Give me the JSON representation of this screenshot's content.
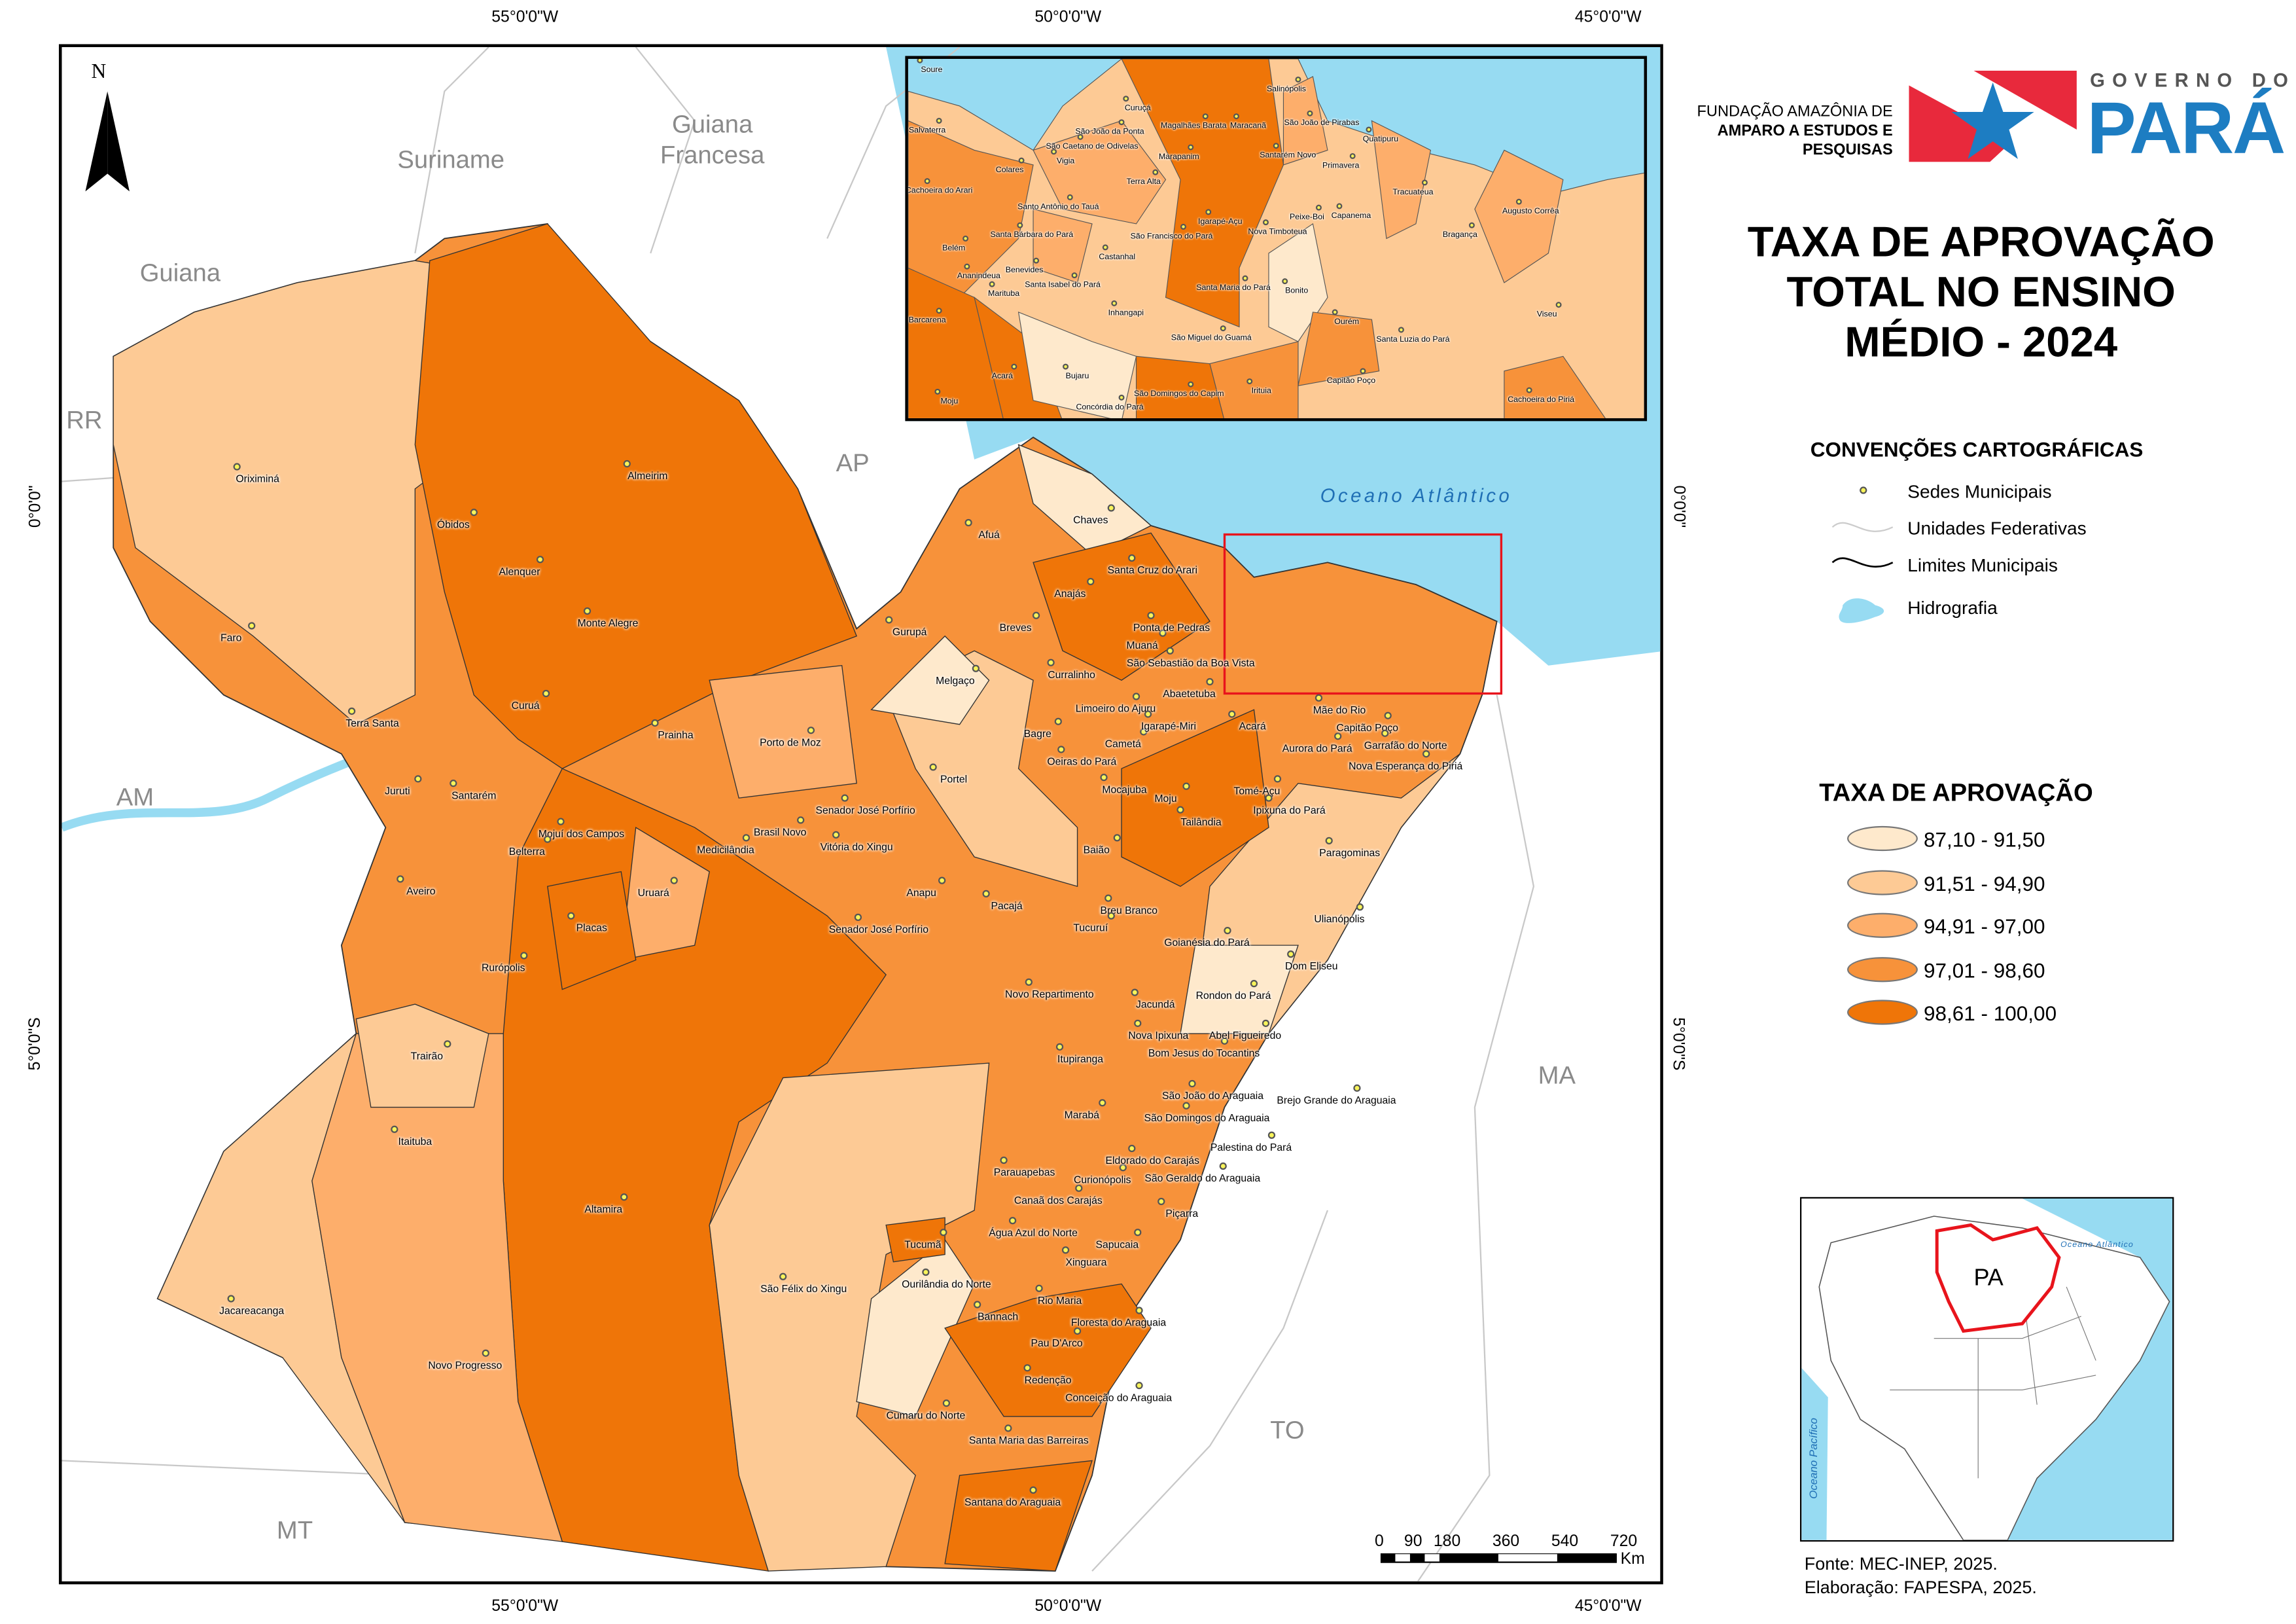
{
  "title": [
    "TAXA DE APROVAÇÃO",
    "TOTAL NO ENSINO",
    "MÉDIO - 2024"
  ],
  "institution": {
    "line1": "FUNDAÇÃO AMAZÔNIA DE",
    "line2": "AMPARO A ESTUDOS E",
    "line3": "PESQUISAS"
  },
  "government_logo": {
    "top": "GOVERNO DO",
    "name": "PARÁ"
  },
  "coordinates": {
    "lon": [
      "55°0'0\"W",
      "50°0'0\"W",
      "45°0'0\"W"
    ],
    "lat": [
      "0°0'0\"",
      "5°0'0\"S"
    ]
  },
  "regions": {
    "suriname": "Suriname",
    "guiana_francesa": "Guiana Francesa",
    "guiana": "Guiana",
    "rr": "RR",
    "ap": "AP",
    "am": "AM",
    "ma": "MA",
    "to": "TO",
    "mt": "MT",
    "ocean": "Oceano Atlântico"
  },
  "conventions": {
    "heading": "CONVENÇÕES CARTOGRÁFICAS",
    "items": [
      "Sedes Municipais",
      "Unidades Federativas",
      "Limites Municipais",
      "Hidrografia"
    ]
  },
  "legend": {
    "heading": "TAXA DE APROVAÇÃO",
    "classes": [
      {
        "label": "87,10 - 91,50",
        "color": "#fee9cc"
      },
      {
        "label": "91,51 - 94,90",
        "color": "#fdca95"
      },
      {
        "label": "94,91 - 97,00",
        "color": "#fdae6b"
      },
      {
        "label": "97,01 - 98,60",
        "color": "#f7923a"
      },
      {
        "label": "98,61 - 100,00",
        "color": "#ef7508"
      }
    ]
  },
  "scale_bar": {
    "ticks": [
      "0",
      "90",
      "180",
      "360",
      "540",
      "720"
    ],
    "unit": "Km"
  },
  "locator": {
    "state": "PA",
    "ocean_atlantic": "Oceano Atlântico",
    "ocean_pacific": "Oceano Pacífico"
  },
  "source": {
    "fonte": "Fonte: MEC-INEP, 2025.",
    "elaboracao": "Elaboração: FAPESPA, 2025."
  },
  "municipalities": [
    "Oriximiná",
    "Óbidos",
    "Almeirim",
    "Alenquer",
    "Monte Alegre",
    "Faro",
    "Terra Santa",
    "Curuá",
    "Prainha",
    "Juruti",
    "Santarém",
    "Porto de Moz",
    "Mojuí dos Campos",
    "Belterra",
    "Senador José Porfírio",
    "Brasil Novo",
    "Vitória do Xingu",
    "Medicilândia",
    "Aveiro",
    "Uruará",
    "Placas",
    "Anapu",
    "Senador José Porfírio",
    "Rurópolis",
    "Pacajá",
    "Trairão",
    "Itaituba",
    "Altamira",
    "Jacareacanga",
    "Novo Progresso",
    "São Félix do Xingu",
    "Tucumã",
    "Ourilândia do Norte",
    "Cumaru do Norte",
    "Santa Maria das Barreiras",
    "Santana do Araguaia",
    "Redenção",
    "Conceição do Araguaia",
    "Bannach",
    "Pau D'Arco",
    "Rio Maria",
    "Floresta do Araguaia",
    "Xinguara",
    "Sapucaia",
    "Água Azul do Norte",
    "Canaã dos Carajás",
    "Parauapebas",
    "Curionópolis",
    "Eldorado do Carajás",
    "São Geraldo do Araguaia",
    "Piçarra",
    "Palestina do Pará",
    "São Domingos do Araguaia",
    "Marabá",
    "São João do Araguaia",
    "Brejo Grande do Araguaia",
    "Itupiranga",
    "Bom Jesus do Tocantins",
    "Nova Ipixuna",
    "Abel Figueiredo",
    "Jacundá",
    "Rondon do Pará",
    "Novo Repartimento",
    "Goianésia do Pará",
    "Breu Branco",
    "Tucuruí",
    "Dom Eliseu",
    "Ulianópolis",
    "Paragominas",
    "Baião",
    "Mocajuba",
    "Moju",
    "Tailândia",
    "Tomé-Açu",
    "Ipixuna do Pará",
    "Cametá",
    "Oeiras do Pará",
    "Bagre",
    "Portel",
    "Melgaço",
    "Gurupá",
    "Breves",
    "Curralinho",
    "Limoeiro do Ajuru",
    "Igarapé-Miri",
    "Abaetetuba",
    "Acará",
    "Aurora do Pará",
    "Mãe do Rio",
    "Capitão Poço",
    "Garrafão do Norte",
    "Nova Esperança do Piriá",
    "São Sebastião da Boa Vista",
    "Muaná",
    "Ponta de Pedras",
    "Anajás",
    "Afuá",
    "Chaves",
    "Santa Cruz do Arari"
  ],
  "inset_municipalities": [
    "Soure",
    "Salvaterra",
    "Curuçá",
    "Magalhães Barata",
    "Maracanã",
    "Salinópolis",
    "São João de Pirabas",
    "São João da Ponta",
    "São Caetano de Odivelas",
    "Colares",
    "Vigia",
    "Marapanim",
    "Santarém Novo",
    "Primavera",
    "Quatipuru",
    "Terra Alta",
    "Cachoeira do Arari",
    "Santo Antônio do Tauá",
    "Igarapé-Açu",
    "Peixe-Boi",
    "Capanema",
    "Tracuateua",
    "Augusto Corrêa",
    "Bragança",
    "Santa Bárbara do Pará",
    "São Francisco do Pará",
    "Nova Timboteua",
    "Belém",
    "Castanhal",
    "Benevides",
    "Ananindeua",
    "Santa Isabel do Pará",
    "Marituba",
    "Santa Maria do Pará",
    "Bonito",
    "Barcarena",
    "Inhangapi",
    "Viseu",
    "Ourém",
    "São Miguel do Guamá",
    "Santa Luzia do Pará",
    "Acará",
    "Bujaru",
    "Capitão Poço",
    "Irituia",
    "São Domingos do Capim",
    "Moju",
    "Concórdia do Pará",
    "Cachoeira do Piriá"
  ]
}
